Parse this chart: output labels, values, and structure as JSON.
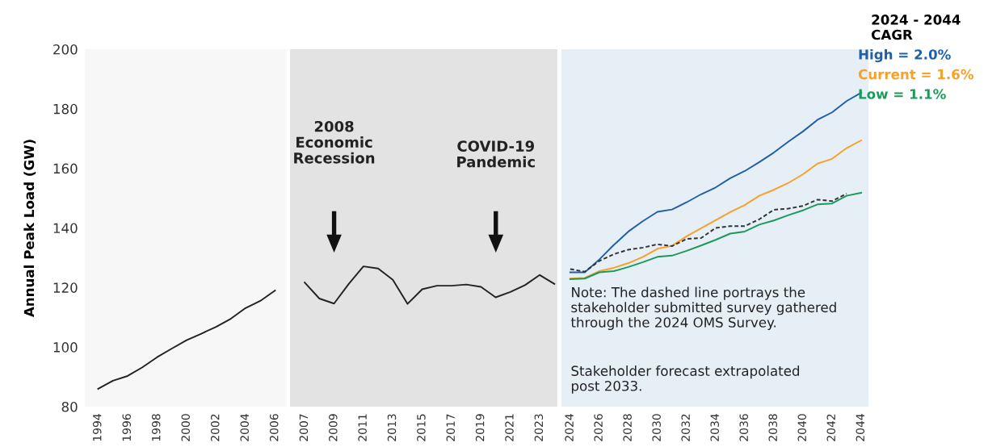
{
  "chart_data": [
    {
      "type": "line",
      "ylabel": "Annual Peak Load (GW)",
      "x": [
        1994,
        1995,
        1996,
        1997,
        1998,
        1999,
        2000,
        2001,
        2002,
        2003,
        2004,
        2005,
        2006
      ],
      "series": [
        {
          "color": "#222222",
          "values": [
            86.0,
            88.7,
            90.3,
            93.2,
            96.6,
            99.5,
            102.3,
            104.5,
            106.8,
            109.5,
            113.1,
            115.5,
            119.0
          ]
        }
      ],
      "xlim": [
        1993.1,
        2006.8
      ],
      "xticks": [
        1994,
        1996,
        1998,
        2000,
        2002,
        2004,
        2006
      ],
      "ylim": [
        80,
        200
      ],
      "yticks": [
        80,
        100,
        120,
        140,
        160,
        180,
        200
      ],
      "grid": false
    },
    {
      "type": "line",
      "x": [
        2007,
        2008,
        2009,
        2010,
        2011,
        2012,
        2013,
        2014,
        2015,
        2016,
        2017,
        2018,
        2019,
        2020,
        2021,
        2022,
        2023,
        2024
      ],
      "series": [
        {
          "color": "#222222",
          "values": [
            121.7,
            116.3,
            114.6,
            121.2,
            127.1,
            126.4,
            122.6,
            114.5,
            119.4,
            120.6,
            120.6,
            121.0,
            120.2,
            116.7,
            118.5,
            120.8,
            124.2,
            121.2
          ]
        }
      ],
      "annotations": [
        "2008\nEconomic\nRecession",
        "COVID-19\nPandemic"
      ],
      "xlim": [
        2006.0,
        2024.2
      ],
      "xticks": [
        2007,
        2009,
        2011,
        2013,
        2015,
        2017,
        2019,
        2021,
        2023
      ],
      "ylim": [
        80,
        200
      ],
      "yticks": [
        80,
        100,
        120,
        140,
        160,
        180,
        200
      ],
      "tick_labels": "x",
      "grid": false
    },
    {
      "type": "line",
      "x": [
        2024,
        2025,
        2026,
        2027,
        2028,
        2029,
        2030,
        2031,
        2032,
        2033,
        2034,
        2035,
        2036,
        2037,
        2038,
        2039,
        2040,
        2041,
        2042,
        2043,
        2044
      ],
      "series": [
        {
          "name": "High = 2.0%",
          "color": "#1f5fa8",
          "values": [
            125.1,
            125.1,
            129.4,
            134.3,
            138.8,
            142.3,
            145.4,
            146.2,
            148.6,
            151.3,
            153.6,
            156.7,
            159.1,
            162.1,
            165.3,
            169.0,
            172.4,
            176.3,
            178.8,
            182.6,
            185.4
          ]
        },
        {
          "name": "Current = 1.6%",
          "color": "#f7a128",
          "values": [
            123.0,
            123.2,
            125.5,
            126.6,
            128.2,
            130.3,
            133.0,
            134.0,
            137.2,
            139.9,
            142.6,
            145.3,
            147.7,
            150.8,
            152.8,
            155.1,
            158.0,
            161.6,
            163.2,
            166.8,
            169.4
          ]
        },
        {
          "name": "Low = 1.1%",
          "color": "#1a9a5a",
          "values": [
            122.8,
            123.0,
            125.1,
            125.5,
            126.9,
            128.5,
            130.3,
            130.7,
            132.3,
            134.1,
            136.0,
            138.1,
            138.8,
            141.1,
            142.5,
            144.3,
            145.9,
            147.9,
            148.2,
            150.8,
            151.8
          ]
        },
        {
          "color": "#333333",
          "line_style": "dashed",
          "values": [
            126.2,
            125.3,
            128.9,
            131.2,
            132.7,
            133.4,
            134.5,
            133.9,
            136.3,
            136.6,
            140.0,
            140.6,
            140.6,
            142.9,
            146.1,
            146.5,
            147.4,
            149.5,
            149.0,
            151.5,
            null
          ]
        }
      ],
      "annotations": [
        "Note: The dashed line portrays the\nstakeholder submitted survey gathered\nthrough the 2024 OMS Survey.",
        "Stakeholder forecast extrapolated\npost 2033."
      ],
      "legend": "top right",
      "legend_title": "2024 - 2044\nCAGR",
      "xlim": [
        2023.4,
        2044.5
      ],
      "xticks": [
        2024,
        2026,
        2028,
        2030,
        2032,
        2034,
        2036,
        2038,
        2040,
        2042,
        2044
      ],
      "ylim": [
        80,
        200
      ],
      "yticks": [
        80,
        100,
        120,
        140,
        160,
        180,
        200
      ],
      "tick_labels": "x",
      "grid": false
    }
  ]
}
